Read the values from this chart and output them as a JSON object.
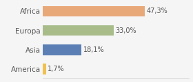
{
  "categories": [
    "America",
    "Asia",
    "Europa",
    "Africa"
  ],
  "values": [
    1.7,
    18.1,
    33.0,
    47.3
  ],
  "labels": [
    "1,7%",
    "18,1%",
    "33,0%",
    "47,3%"
  ],
  "bar_colors": [
    "#f0c050",
    "#5b7fb5",
    "#a8bc8a",
    "#e8a878"
  ],
  "background_color": "#f5f5f5",
  "xlim": [
    0,
    68
  ],
  "label_fontsize": 7,
  "tick_fontsize": 7.5
}
